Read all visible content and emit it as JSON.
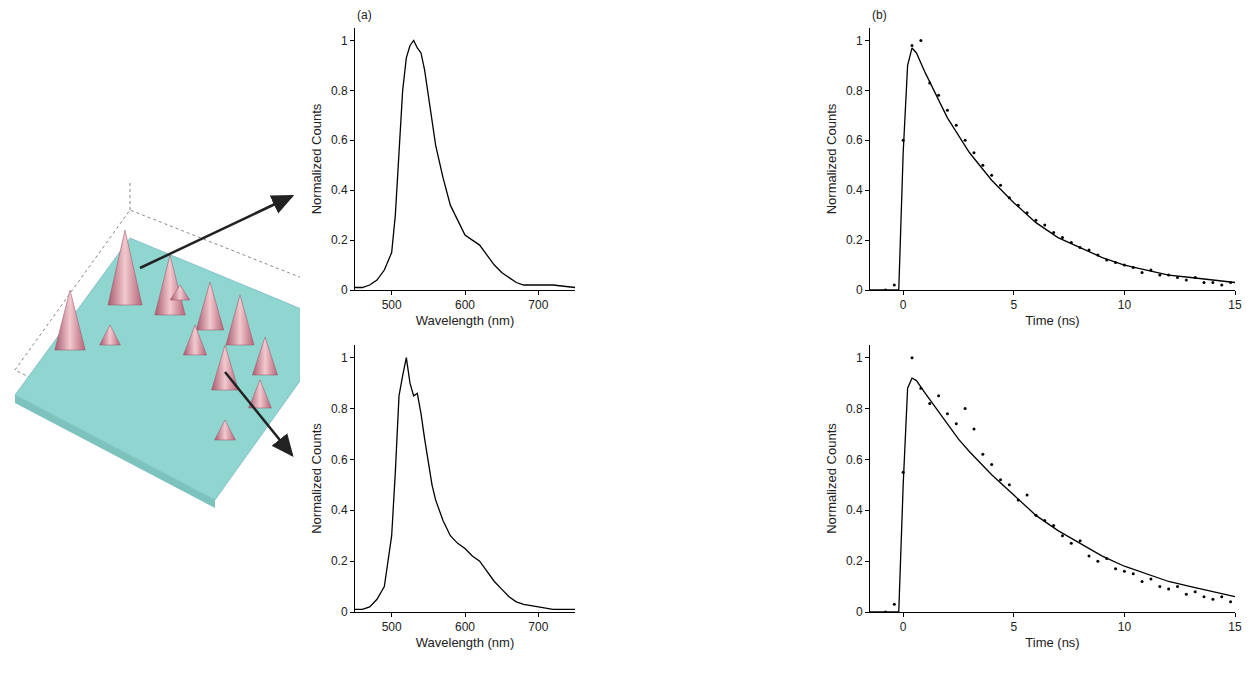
{
  "chart_data": [
    {
      "type": "line",
      "title": "(a)",
      "x_label": "Wavelength (nm)",
      "y_label": "Normalized Counts",
      "x": [
        450,
        460,
        470,
        480,
        490,
        500,
        505,
        510,
        515,
        520,
        525,
        530,
        535,
        540,
        545,
        550,
        555,
        560,
        570,
        580,
        590,
        600,
        610,
        620,
        630,
        640,
        650,
        660,
        670,
        680,
        700,
        720,
        750
      ],
      "values": [
        0.01,
        0.01,
        0.02,
        0.04,
        0.08,
        0.15,
        0.3,
        0.55,
        0.8,
        0.93,
        0.98,
        1.0,
        0.97,
        0.95,
        0.88,
        0.78,
        0.68,
        0.58,
        0.45,
        0.34,
        0.28,
        0.22,
        0.2,
        0.18,
        0.14,
        0.1,
        0.07,
        0.05,
        0.03,
        0.02,
        0.02,
        0.02,
        0.01
      ],
      "color": "#000000",
      "xlim": [
        450,
        750
      ],
      "ylim": [
        0,
        1.05
      ],
      "xticks": [
        500,
        600,
        700
      ],
      "yticks": [
        0,
        0.2,
        0.4,
        0.6,
        0.8,
        1
      ],
      "grid": false
    },
    {
      "type": "scatter",
      "title": "(b)",
      "x_label": "Time (ns)",
      "y_label": "Normalized Counts",
      "series": [
        {
          "type": "scatter",
          "marker": "dot",
          "color": "#000000",
          "x": [
            -0.8,
            -0.4,
            0,
            0.4,
            0.8,
            1.2,
            1.6,
            2,
            2.4,
            2.8,
            3.2,
            3.6,
            4,
            4.4,
            4.8,
            5.2,
            5.6,
            6,
            6.4,
            6.8,
            7.2,
            7.6,
            8,
            8.4,
            8.8,
            9.2,
            9.6,
            10,
            10.4,
            10.8,
            11.2,
            11.6,
            12,
            12.4,
            12.8,
            13.2,
            13.6,
            14,
            14.4,
            14.8
          ],
          "values": [
            0,
            0.02,
            0.6,
            0.98,
            1.0,
            0.83,
            0.78,
            0.72,
            0.66,
            0.6,
            0.55,
            0.5,
            0.46,
            0.42,
            0.37,
            0.34,
            0.31,
            0.28,
            0.26,
            0.23,
            0.21,
            0.19,
            0.17,
            0.16,
            0.14,
            0.12,
            0.11,
            0.1,
            0.09,
            0.07,
            0.08,
            0.06,
            0.06,
            0.05,
            0.04,
            0.05,
            0.03,
            0.03,
            0.02,
            0.03
          ]
        },
        {
          "type": "line",
          "line_style": "solid",
          "color": "#000000",
          "x": [
            -1.5,
            -0.2,
            0,
            0.2,
            0.4,
            0.6,
            1,
            1.5,
            2,
            2.5,
            3,
            4,
            5,
            6,
            7,
            8,
            9,
            10,
            11,
            12,
            13,
            14,
            15
          ],
          "values": [
            0,
            0,
            0.55,
            0.9,
            0.97,
            0.95,
            0.87,
            0.78,
            0.69,
            0.62,
            0.55,
            0.44,
            0.35,
            0.27,
            0.21,
            0.17,
            0.13,
            0.1,
            0.08,
            0.06,
            0.05,
            0.04,
            0.03
          ]
        }
      ],
      "xlim": [
        -1.5,
        15
      ],
      "ylim": [
        0,
        1.05
      ],
      "xticks": [
        0,
        5,
        10,
        15
      ],
      "yticks": [
        0,
        0.2,
        0.4,
        0.6,
        0.8,
        1
      ],
      "grid": false
    },
    {
      "type": "line",
      "x_label": "Wavelength (nm)",
      "y_label": "Normalized Counts",
      "x": [
        450,
        460,
        470,
        480,
        490,
        500,
        505,
        510,
        515,
        520,
        525,
        530,
        535,
        540,
        545,
        550,
        555,
        560,
        570,
        580,
        590,
        600,
        610,
        620,
        630,
        640,
        650,
        660,
        670,
        680,
        700,
        720,
        750
      ],
      "values": [
        0.01,
        0.01,
        0.02,
        0.05,
        0.1,
        0.3,
        0.55,
        0.85,
        0.93,
        1.0,
        0.9,
        0.85,
        0.86,
        0.78,
        0.68,
        0.58,
        0.5,
        0.44,
        0.36,
        0.3,
        0.27,
        0.25,
        0.22,
        0.2,
        0.16,
        0.12,
        0.09,
        0.06,
        0.04,
        0.03,
        0.02,
        0.01,
        0.01
      ],
      "color": "#000000",
      "xlim": [
        450,
        750
      ],
      "ylim": [
        0,
        1.05
      ],
      "xticks": [
        500,
        600,
        700
      ],
      "yticks": [
        0,
        0.2,
        0.4,
        0.6,
        0.8,
        1
      ],
      "grid": false
    },
    {
      "type": "scatter",
      "x_label": "Time (ns)",
      "y_label": "Normalized Counts",
      "series": [
        {
          "type": "scatter",
          "marker": "dot",
          "color": "#000000",
          "x": [
            -0.8,
            -0.4,
            0,
            0.4,
            0.8,
            1.2,
            1.6,
            2,
            2.4,
            2.8,
            3.2,
            3.6,
            4,
            4.4,
            4.8,
            5.2,
            5.6,
            6,
            6.4,
            6.8,
            7.2,
            7.6,
            8,
            8.4,
            8.8,
            9.2,
            9.6,
            10,
            10.4,
            10.8,
            11.2,
            11.6,
            12,
            12.4,
            12.8,
            13.2,
            13.6,
            14,
            14.4,
            14.8
          ],
          "values": [
            0,
            0.03,
            0.55,
            1.0,
            0.88,
            0.82,
            0.85,
            0.78,
            0.74,
            0.8,
            0.72,
            0.62,
            0.58,
            0.52,
            0.5,
            0.44,
            0.46,
            0.38,
            0.36,
            0.34,
            0.3,
            0.27,
            0.28,
            0.22,
            0.2,
            0.21,
            0.17,
            0.16,
            0.15,
            0.12,
            0.13,
            0.1,
            0.09,
            0.1,
            0.07,
            0.08,
            0.06,
            0.05,
            0.06,
            0.04
          ]
        },
        {
          "type": "line",
          "line_style": "solid",
          "color": "#000000",
          "x": [
            -1.5,
            -0.2,
            0,
            0.2,
            0.4,
            0.6,
            1,
            1.5,
            2,
            2.5,
            3,
            4,
            5,
            6,
            7,
            8,
            9,
            10,
            11,
            12,
            13,
            14,
            15
          ],
          "values": [
            0,
            0,
            0.5,
            0.88,
            0.92,
            0.91,
            0.86,
            0.8,
            0.74,
            0.68,
            0.63,
            0.54,
            0.46,
            0.38,
            0.32,
            0.27,
            0.22,
            0.18,
            0.15,
            0.12,
            0.1,
            0.08,
            0.06
          ]
        }
      ],
      "xlim": [
        -1.5,
        15
      ],
      "ylim": [
        0,
        1.05
      ],
      "xticks": [
        0,
        5,
        10,
        15
      ],
      "yticks": [
        0,
        0.2,
        0.4,
        0.6,
        0.8,
        1
      ],
      "grid": false
    }
  ]
}
